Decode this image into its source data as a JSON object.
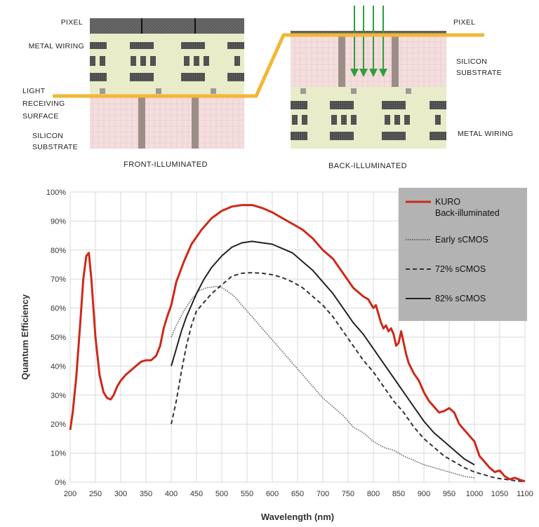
{
  "diagram": {
    "front": {
      "pixel_label": "PIXEL",
      "metal_label": "METAL WIRING",
      "surface_label": [
        "LIGHT",
        "RECEIVING",
        "SURFACE"
      ],
      "silicon_label": [
        "SILICON",
        "SUBSTRATE"
      ],
      "caption": "FRONT-ILLUMINATED"
    },
    "back": {
      "pixel_label": "PIXEL",
      "silicon_label": [
        "SILICON",
        "SUBSTRATE"
      ],
      "metal_label": "METAL WIRING",
      "caption": "BACK-ILLUMINATED"
    },
    "colors": {
      "surface_line": "#f2b735",
      "pixel_band": "#5a5a5a",
      "wiring_bg": "#e8ecc8",
      "silicon_bg": "#f4dede",
      "arrow": "#2e9e3e"
    }
  },
  "chart_data": {
    "type": "line",
    "xlabel": "Wavelength (nm)",
    "ylabel": "Quantum Efficiency",
    "xlim": [
      200,
      1100
    ],
    "ylim": [
      0,
      100
    ],
    "xticks": [
      200,
      250,
      300,
      350,
      400,
      450,
      500,
      550,
      600,
      650,
      700,
      750,
      800,
      850,
      900,
      950,
      1000,
      1050,
      1100
    ],
    "yticks": [
      0,
      10,
      20,
      30,
      40,
      50,
      60,
      70,
      80,
      90,
      100
    ],
    "ytick_suffix": "%",
    "grid": true,
    "legend_position": "top-right",
    "series": [
      {
        "name": "KURO\nBack-illuminated",
        "color": "#cc2a1a",
        "style": "solid",
        "x": [
          200,
          205,
          212,
          220,
          226,
          232,
          237,
          242,
          250,
          258,
          266,
          273,
          280,
          286,
          293,
          300,
          310,
          320,
          330,
          340,
          350,
          360,
          370,
          378,
          385,
          392,
          400,
          410,
          425,
          440,
          460,
          480,
          500,
          520,
          540,
          560,
          580,
          600,
          620,
          640,
          660,
          680,
          700,
          720,
          740,
          760,
          780,
          790,
          800,
          805,
          810,
          815,
          820,
          825,
          830,
          835,
          840,
          845,
          850,
          855,
          860,
          865,
          870,
          880,
          890,
          900,
          910,
          920,
          930,
          940,
          950,
          960,
          970,
          980,
          990,
          1000,
          1010,
          1020,
          1030,
          1040,
          1050,
          1060,
          1070,
          1080,
          1090,
          1100
        ],
        "y": [
          18,
          24,
          36,
          55,
          70,
          78,
          79,
          70,
          50,
          37,
          31,
          29,
          28.5,
          30,
          33,
          35,
          37,
          38.5,
          40,
          41.5,
          42,
          42,
          43.5,
          47,
          53,
          57,
          61,
          69,
          76,
          82,
          87,
          91,
          93.5,
          95,
          95.5,
          95.5,
          94.5,
          93,
          91,
          89,
          87,
          84,
          80,
          77,
          72,
          67,
          64,
          63,
          60,
          61,
          58,
          55,
          53,
          54,
          52,
          53,
          51,
          47,
          48,
          52,
          48,
          44,
          41,
          37.5,
          35,
          31,
          28,
          26,
          24,
          24.5,
          25.5,
          24,
          20,
          18,
          16,
          14,
          9,
          7,
          5,
          3.5,
          4,
          2,
          1,
          1.5,
          0.8,
          0.3
        ]
      },
      {
        "name": "Early sCMOS",
        "color": "#666666",
        "style": "dotted",
        "x": [
          400,
          410,
          425,
          440,
          455,
          470,
          480,
          490,
          500,
          510,
          525,
          540,
          560,
          580,
          600,
          620,
          640,
          660,
          680,
          700,
          720,
          740,
          760,
          780,
          800,
          820,
          840,
          860,
          880,
          900,
          920,
          940,
          960,
          980,
          1000
        ],
        "y": [
          50,
          54,
          59,
          63,
          66,
          67,
          67.2,
          67.5,
          67,
          66,
          64,
          61,
          57,
          53,
          49,
          45,
          41,
          37,
          33,
          29,
          26,
          23,
          19,
          17,
          14,
          12,
          11,
          9,
          7.5,
          6,
          5,
          4,
          3,
          2,
          1.5
        ]
      },
      {
        "name": "72% sCMOS",
        "color": "#333333",
        "style": "dashed",
        "x": [
          400,
          410,
          420,
          430,
          440,
          450,
          465,
          480,
          500,
          520,
          540,
          560,
          580,
          600,
          620,
          640,
          660,
          680,
          700,
          720,
          740,
          760,
          780,
          800,
          820,
          840,
          860,
          880,
          900,
          920,
          940,
          960,
          980,
          1000,
          1020,
          1040,
          1060,
          1080,
          1100
        ],
        "y": [
          20,
          28,
          38,
          47,
          54,
          59,
          62,
          65,
          68,
          71,
          72,
          72.2,
          72,
          71.5,
          70.5,
          69,
          67,
          64,
          61,
          57,
          52,
          47,
          42,
          38,
          33,
          28,
          24,
          19,
          15,
          12,
          9,
          7,
          5,
          3.5,
          2.5,
          1.5,
          1,
          0.5,
          0.2
        ]
      },
      {
        "name": "82% sCMOS",
        "color": "#222222",
        "style": "solid",
        "x": [
          400,
          410,
          420,
          430,
          440,
          450,
          465,
          480,
          500,
          520,
          540,
          560,
          580,
          600,
          620,
          640,
          660,
          680,
          700,
          720,
          740,
          760,
          780,
          800,
          820,
          840,
          860,
          880,
          900,
          920,
          940,
          960,
          980,
          1000
        ],
        "y": [
          40,
          46,
          52,
          57,
          61,
          65,
          70,
          74,
          78,
          81,
          82.5,
          83,
          82.5,
          82,
          80.5,
          79,
          76,
          73,
          69,
          65,
          60,
          55,
          51,
          46,
          41,
          36,
          31,
          26,
          21,
          17,
          14,
          11,
          8,
          6
        ]
      }
    ],
    "legend_bg": "#b3b3b3"
  }
}
